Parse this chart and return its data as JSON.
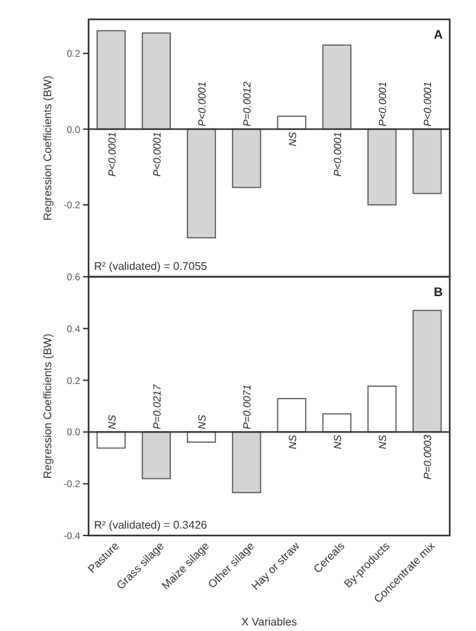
{
  "chart_data": [
    {
      "type": "bar",
      "ylabel": "Regression Coefficients (BW)",
      "categories": [
        "Pasture",
        "Grass silage",
        "Maize silage",
        "Other silage",
        "Hay or straw",
        "Cereals",
        "By-products",
        "Concentrate mix"
      ],
      "values": [
        0.26,
        0.254,
        -0.287,
        -0.154,
        0.034,
        0.222,
        -0.2,
        -0.17
      ],
      "colors": [
        "#d4d4d4",
        "#d4d4d4",
        "#d4d4d4",
        "#d4d4d4",
        "#ffffff",
        "#d4d4d4",
        "#d4d4d4",
        "#d4d4d4"
      ],
      "ylim": [
        -0.39,
        0.29
      ],
      "yticks": [
        -0.2,
        {
          "value": 0,
          "label": "0.0"
        },
        0.2
      ],
      "ref_lines": [
        {
          "axis": "y",
          "value": 0
        }
      ],
      "annotations": [
        "A",
        "R² (validated) = 0.7055",
        {
          "text": "P<0.0001",
          "x": "Pasture",
          "y": 0
        },
        {
          "text": "P<0.0001",
          "x": "Grass silage",
          "y": 0
        },
        {
          "text": "P<0.0001",
          "x": "Maize silage",
          "y": 0
        },
        {
          "text": "P=0.0012",
          "x": "Other silage",
          "y": 0
        },
        {
          "text": "NS",
          "x": "Hay or straw",
          "y": 0
        },
        {
          "text": "P<0.0001",
          "x": "Cereals",
          "y": 0
        },
        {
          "text": "P<0.0001",
          "x": "By-products",
          "y": 0
        },
        {
          "text": "P<0.0001",
          "x": "Concentrate mix",
          "y": 0
        }
      ],
      "tick_labels": "y"
    },
    {
      "type": "bar",
      "ylabel": "Regression Coefficients (BW)",
      "xlabel": "X Variables",
      "categories": [
        "Pasture",
        "Grass silage",
        "Maize silage",
        "Other silage",
        "Hay or straw",
        "Cereals",
        "By-products",
        "Concentrate mix"
      ],
      "values": [
        -0.062,
        -0.18,
        -0.039,
        -0.234,
        0.129,
        0.07,
        0.177,
        0.47
      ],
      "colors": [
        "#ffffff",
        "#d4d4d4",
        "#ffffff",
        "#d4d4d4",
        "#ffffff",
        "#ffffff",
        "#ffffff",
        "#d4d4d4"
      ],
      "ylim": [
        -0.4,
        0.6
      ],
      "yticks": [
        -0.4,
        -0.2,
        {
          "value": 0,
          "label": "0.0"
        },
        0.2,
        0.4,
        0.6
      ],
      "ref_lines": [
        {
          "axis": "y",
          "value": 0
        }
      ],
      "annotations": [
        "B",
        "R² (validated) = 0.3426",
        {
          "text": "NS",
          "x": "Pasture",
          "y": 0
        },
        {
          "text": "P=0.0217",
          "x": "Grass silage",
          "y": 0
        },
        {
          "text": "NS",
          "x": "Maize silage",
          "y": 0
        },
        {
          "text": "P=0.0071",
          "x": "Other silage",
          "y": 0
        },
        {
          "text": "NS",
          "x": "Hay or straw",
          "y": 0
        },
        {
          "text": "NS",
          "x": "Cereals",
          "y": 0
        },
        {
          "text": "NS",
          "x": "By-products",
          "y": 0
        },
        {
          "text": "P=0.0003",
          "x": "Concentrate mix",
          "y": 0
        }
      ]
    }
  ]
}
